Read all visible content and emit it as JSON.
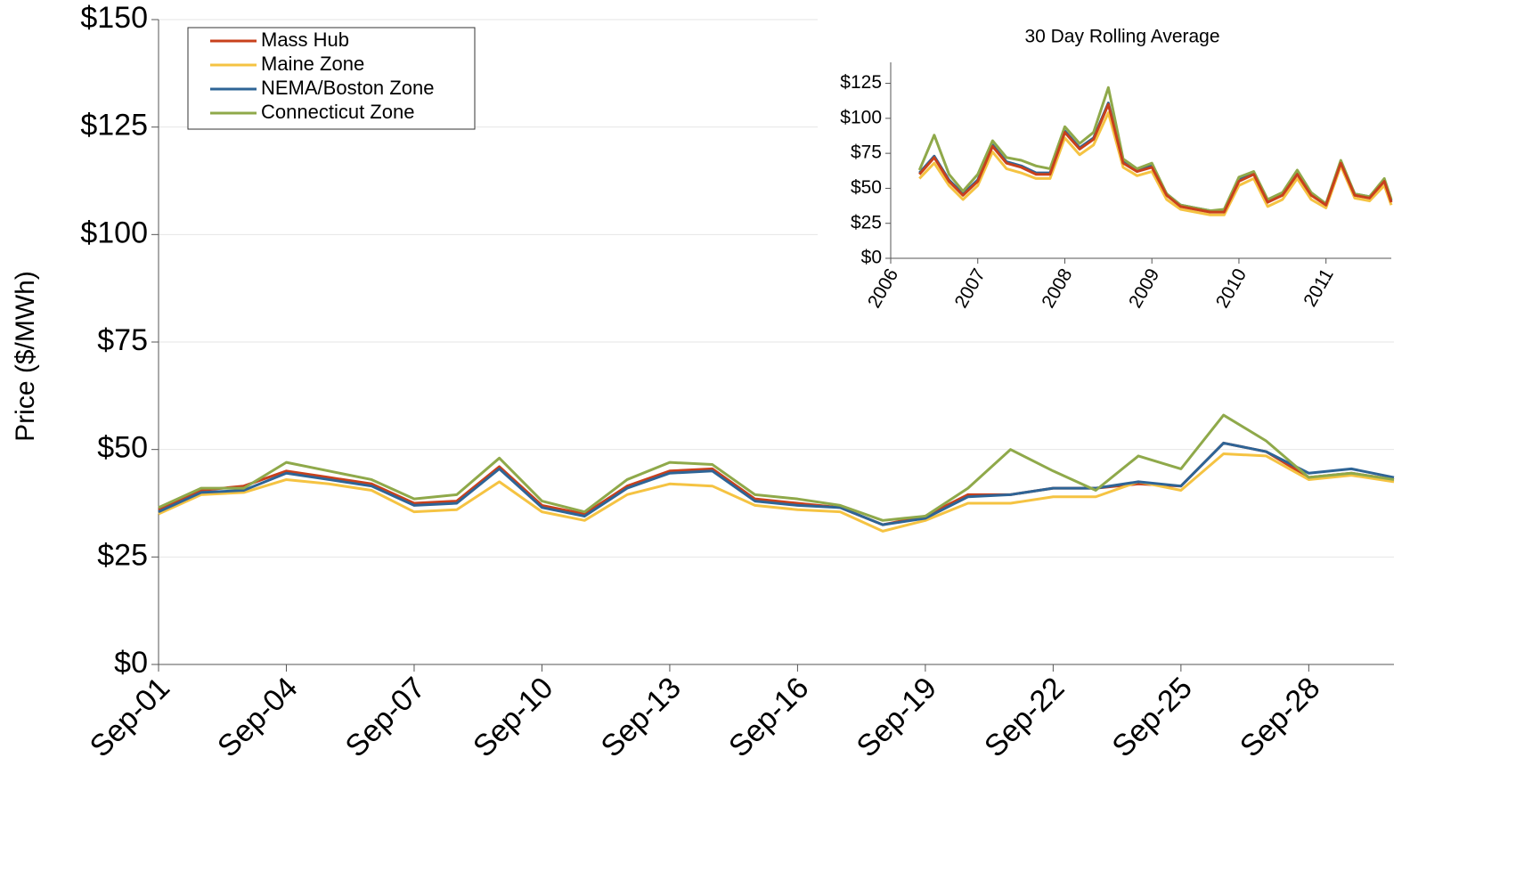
{
  "chart_data": [
    {
      "type": "line",
      "y_label": "Price ($/MWh)",
      "categories": [
        "Sep-01",
        null,
        null,
        "Sep-04",
        null,
        null,
        "Sep-07",
        null,
        null,
        "Sep-10",
        null,
        null,
        "Sep-13",
        null,
        null,
        "Sep-16",
        null,
        null,
        "Sep-19",
        null,
        null,
        "Sep-22",
        null,
        null,
        "Sep-25",
        null,
        null,
        "Sep-28",
        null,
        null
      ],
      "series": [
        {
          "name": "Mass Hub",
          "color": "#c8401c",
          "values": [
            36,
            40.5,
            41.5,
            45,
            43.5,
            42,
            37.5,
            38,
            46,
            37,
            35,
            41.5,
            45,
            45.5,
            38.5,
            37.5,
            36.5,
            32.5,
            34.5,
            39.5,
            39.5,
            41,
            41,
            42,
            41.5,
            51.5,
            49.5,
            43.5,
            44.5,
            43
          ]
        },
        {
          "name": "Maine Zone",
          "color": "#f5c342",
          "values": [
            35,
            39.5,
            40,
            43,
            42,
            40.5,
            35.5,
            36,
            42.5,
            35.5,
            33.5,
            39.5,
            42,
            41.5,
            37,
            36,
            35.5,
            31,
            33.5,
            37.5,
            37.5,
            39,
            39,
            42.5,
            40.5,
            49,
            48.5,
            43,
            44,
            42.5
          ]
        },
        {
          "name": "NEMA/Boston Zone",
          "color": "#2e6496",
          "values": [
            35.5,
            40,
            40.5,
            44.5,
            43,
            41.5,
            37,
            37.5,
            45.5,
            36.5,
            34.5,
            41,
            44.5,
            45,
            38,
            37,
            36.5,
            32.5,
            34,
            39,
            39.5,
            41,
            41,
            42.5,
            41.5,
            51.5,
            49.5,
            44.5,
            45.5,
            43.5
          ]
        },
        {
          "name": "Connecticut Zone",
          "color": "#8fa94a",
          "values": [
            36.5,
            41,
            41,
            47,
            45,
            43,
            38.5,
            39.5,
            48,
            38,
            35.5,
            43,
            47,
            46.5,
            39.5,
            38.5,
            37,
            33.5,
            34.5,
            41,
            50,
            45,
            40.5,
            48.5,
            45.5,
            58,
            52,
            43.5,
            44.5,
            43
          ]
        }
      ],
      "ylim": [
        0,
        150
      ],
      "yticks": [
        {
          "value": 0,
          "label": "$0"
        },
        {
          "value": 25,
          "label": "$25"
        },
        {
          "value": 50,
          "label": "$50"
        },
        {
          "value": 75,
          "label": "$75"
        },
        {
          "value": 100,
          "label": "$100"
        },
        {
          "value": 125,
          "label": "$125"
        },
        {
          "value": 150,
          "label": "$150"
        }
      ],
      "grid": true,
      "legend": "top-left"
    },
    {
      "type": "line",
      "title": "30 Day Rolling Average",
      "x": [
        2006.33,
        2006.5,
        2006.67,
        2006.83,
        2007.0,
        2007.17,
        2007.33,
        2007.5,
        2007.67,
        2007.83,
        2008.0,
        2008.17,
        2008.33,
        2008.5,
        2008.67,
        2008.83,
        2009.0,
        2009.17,
        2009.33,
        2009.5,
        2009.67,
        2009.83,
        2010.0,
        2010.17,
        2010.33,
        2010.5,
        2010.67,
        2010.83,
        2011.0,
        2011.17,
        2011.33,
        2011.5,
        2011.67,
        2011.75
      ],
      "series": [
        {
          "color": "#f5c342",
          "values": [
            57,
            68,
            52,
            42,
            52,
            76,
            64,
            61,
            57,
            57,
            86,
            74,
            81,
            104,
            65,
            59,
            62,
            42,
            35,
            33,
            31,
            31,
            52,
            57,
            37,
            42,
            57,
            42,
            36,
            66,
            43,
            41,
            52,
            38
          ]
        },
        {
          "color": "#2e6496",
          "values": [
            61,
            73,
            56,
            46,
            56,
            81,
            69,
            66,
            61,
            61,
            91,
            79,
            86,
            111,
            69,
            63,
            66,
            46,
            38,
            36,
            34,
            34,
            56,
            61,
            41,
            46,
            61,
            46,
            39,
            69,
            46,
            44,
            56,
            41
          ]
        },
        {
          "color": "#8fa94a",
          "values": [
            63,
            88,
            60,
            48,
            60,
            84,
            72,
            70,
            66,
            64,
            94,
            82,
            90,
            122,
            71,
            64,
            68,
            46,
            38,
            36,
            34,
            35,
            58,
            62,
            42,
            47,
            63,
            47,
            39,
            70,
            46,
            44,
            57,
            42
          ]
        },
        {
          "color": "#c8401c",
          "values": [
            60,
            72,
            55,
            45,
            55,
            80,
            68,
            65,
            60,
            60,
            90,
            78,
            85,
            110,
            68,
            62,
            65,
            45,
            37,
            35,
            33,
            33,
            55,
            60,
            40,
            45,
            60,
            45,
            38,
            68,
            45,
            43,
            55,
            40
          ]
        }
      ],
      "xlim": [
        2006,
        2011.75
      ],
      "xticks": [
        2006,
        2007,
        2008,
        2009,
        2010,
        2011
      ],
      "ylim": [
        0,
        140
      ],
      "yticks": [
        {
          "value": 0,
          "label": "$0"
        },
        {
          "value": 25,
          "label": "$25"
        },
        {
          "value": 50,
          "label": "$50"
        },
        {
          "value": 75,
          "label": "$75"
        },
        {
          "value": 100,
          "label": "$100"
        },
        {
          "value": 125,
          "label": "$125"
        }
      ]
    }
  ]
}
